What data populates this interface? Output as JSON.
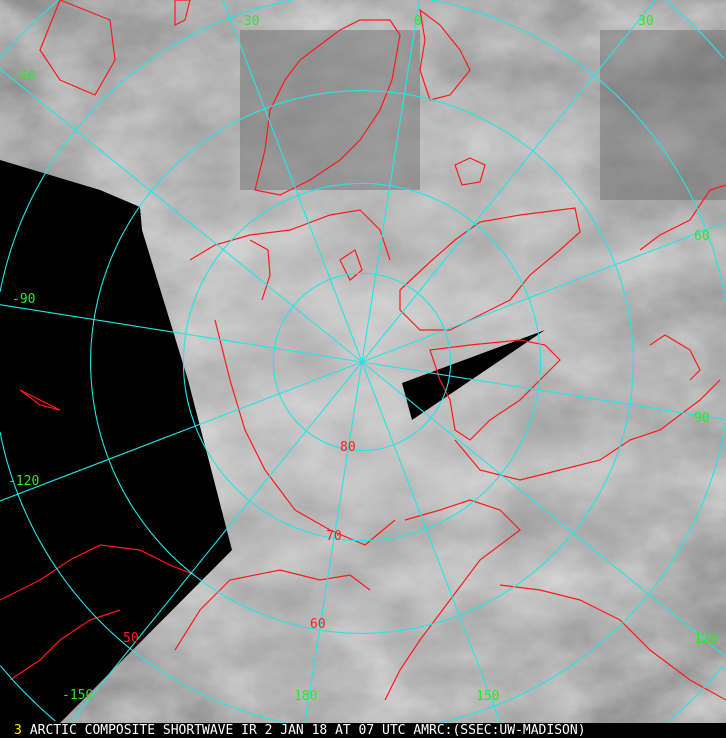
{
  "caption": {
    "channel": "3",
    "text": "ARCTIC COMPOSITE SHORTWAVE IR 2 JAN 18 AT 07 UTC AMRC:(SSEC:UW-MADISON)"
  },
  "colors": {
    "graticule": "#22e6e6",
    "coastline": "#ff1a1a",
    "longitude_label": "#22ee22",
    "latitude_label": "#ff2020",
    "no_data": "#000000"
  },
  "longitude_labels": [
    "-30",
    "0",
    "30",
    "-60",
    "60",
    "-90",
    "90",
    "-120",
    "120",
    "-150",
    "180",
    "150"
  ],
  "latitude_labels": [
    "80",
    "70",
    "60",
    "50"
  ]
}
